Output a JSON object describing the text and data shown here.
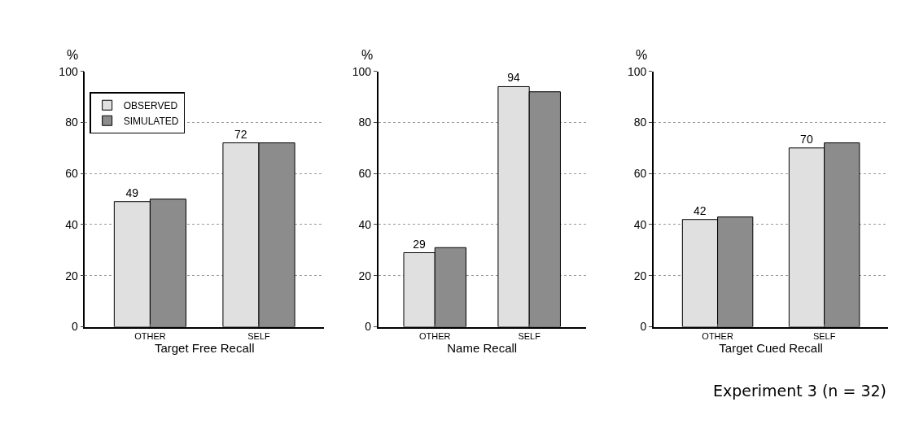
{
  "chart_data": [
    {
      "type": "bar",
      "xlabel": "Target Free Recall",
      "ylabel": "%",
      "categories": [
        "OTHER",
        "SELF"
      ],
      "ylim": [
        0,
        100
      ],
      "yticks": [
        0,
        20,
        40,
        60,
        80,
        100
      ],
      "grid": "y",
      "legend": "top left",
      "series": [
        {
          "name": "OBSERVED",
          "color": "#e0e0e0",
          "values": [
            49,
            72
          ],
          "value_labels": [
            "49",
            "72"
          ]
        },
        {
          "name": "SIMULATED",
          "color": "#8c8c8c",
          "values": [
            50,
            72
          ]
        }
      ]
    },
    {
      "type": "bar",
      "xlabel": "Name Recall",
      "ylabel": "%",
      "categories": [
        "OTHER",
        "SELF"
      ],
      "ylim": [
        0,
        100
      ],
      "yticks": [
        0,
        20,
        40,
        60,
        80,
        100
      ],
      "grid": "y",
      "series": [
        {
          "color": "#e0e0e0",
          "values": [
            29,
            94
          ],
          "value_labels": [
            "29",
            "94"
          ]
        },
        {
          "color": "#8c8c8c",
          "values": [
            31,
            92
          ]
        }
      ]
    },
    {
      "type": "bar",
      "xlabel": "Target Cued Recall",
      "ylabel": "%",
      "categories": [
        "OTHER",
        "SELF"
      ],
      "ylim": [
        0,
        100
      ],
      "yticks": [
        0,
        20,
        40,
        60,
        80,
        100
      ],
      "grid": "y",
      "annotations": [
        "Experiment 3 (n = 32)"
      ],
      "series": [
        {
          "color": "#e0e0e0",
          "values": [
            42,
            70
          ],
          "value_labels": [
            "42",
            "70"
          ]
        },
        {
          "color": "#8c8c8c",
          "values": [
            43,
            72
          ]
        }
      ]
    }
  ]
}
